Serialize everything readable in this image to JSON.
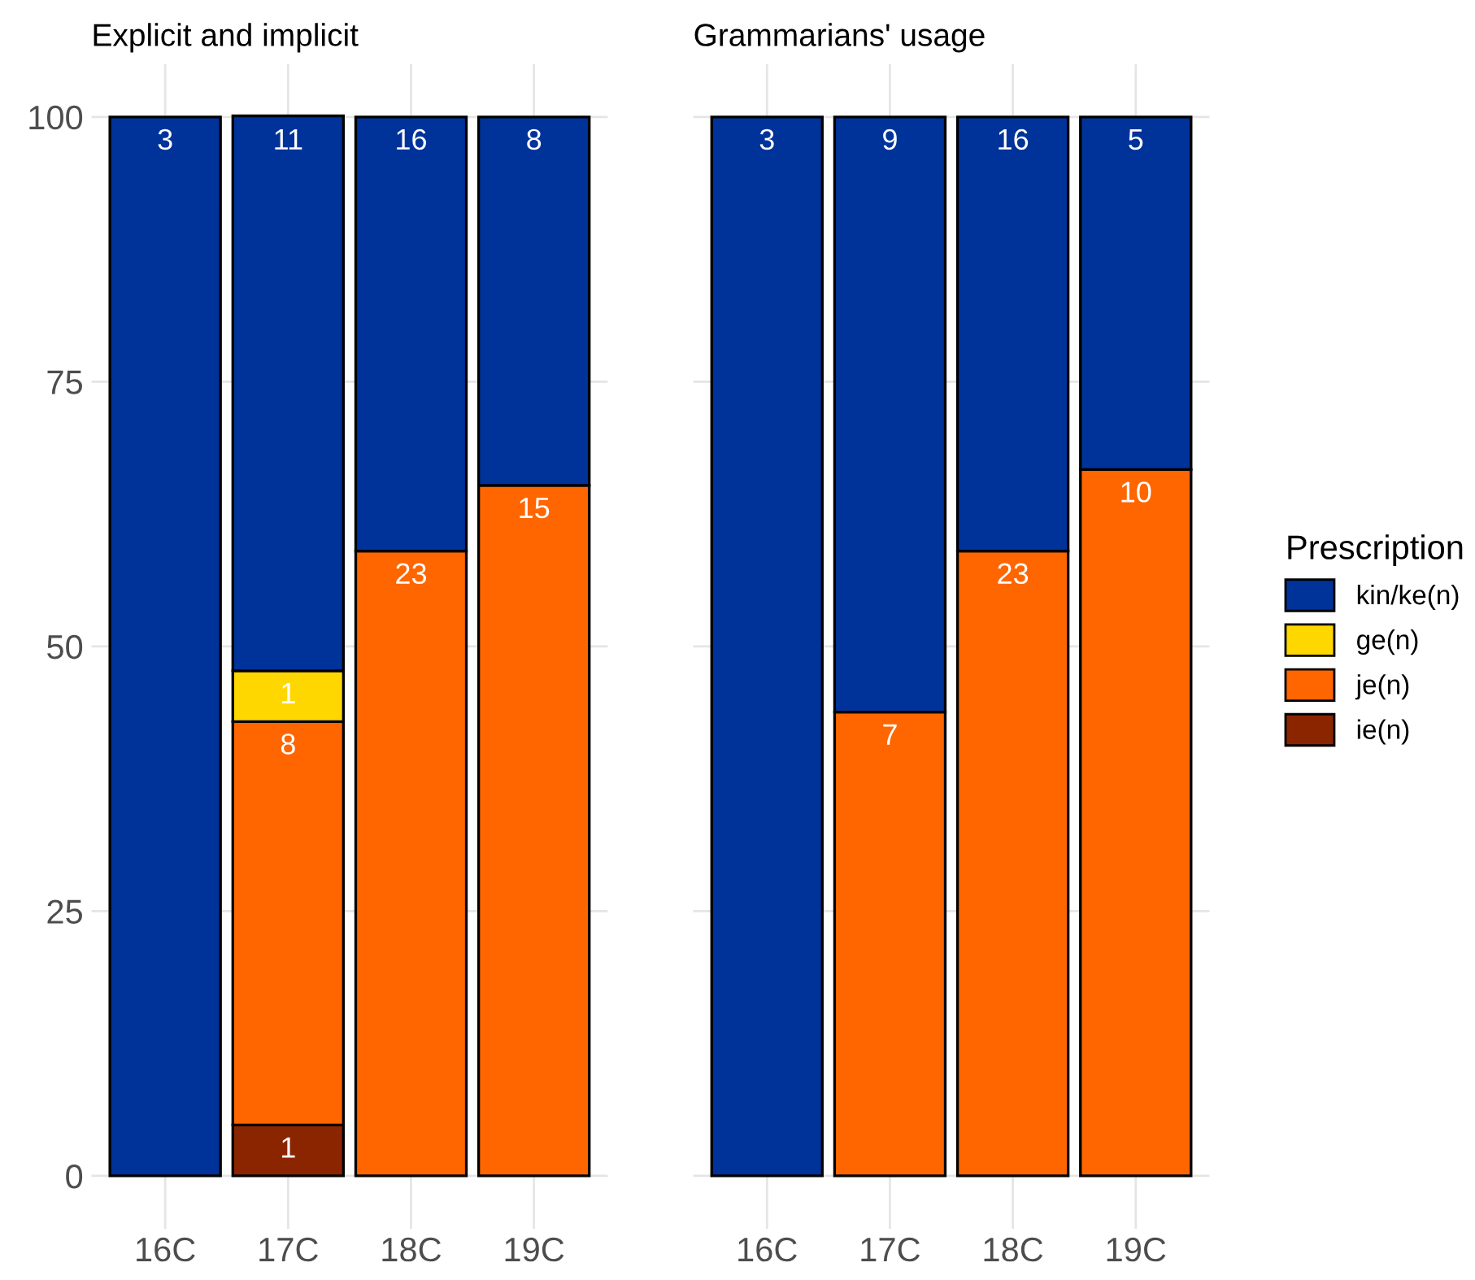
{
  "chart_data": [
    {
      "type": "bar",
      "stacked": true,
      "title": "Explicit and implicit",
      "categories": [
        "16C",
        "17C",
        "18C",
        "19C"
      ],
      "ylim": [
        -5,
        105
      ],
      "yticks": [
        0,
        25,
        50,
        75,
        100
      ],
      "grid": true,
      "legend": "right",
      "legend_title": "Prescription",
      "series": [
        {
          "name": "ie(n)",
          "color": "#8b2500",
          "values": [
            null,
            4.8,
            null,
            null
          ]
        },
        {
          "name": "je(n)",
          "color": "#ff6600",
          "values": [
            null,
            38.1,
            59.0,
            65.2
          ]
        },
        {
          "name": "ge(n)",
          "color": "#ffd700",
          "values": [
            null,
            4.8,
            null,
            null
          ]
        },
        {
          "name": "kin/ke(n)",
          "color": "#003399",
          "values": [
            100,
            52.4,
            41.0,
            34.8
          ]
        }
      ],
      "annotations": [
        {
          "text": "3",
          "x": "16C",
          "y": 100
        },
        {
          "text": "1",
          "x": "17C",
          "y": 4.8
        },
        {
          "text": "8",
          "x": "17C",
          "y": 42.9
        },
        {
          "text": "1",
          "x": "17C",
          "y": 47.7
        },
        {
          "text": "11",
          "x": "17C",
          "y": 100
        },
        {
          "text": "23",
          "x": "18C",
          "y": 59.0
        },
        {
          "text": "16",
          "x": "18C",
          "y": 100
        },
        {
          "text": "15",
          "x": "19C",
          "y": 65.2
        },
        {
          "text": "8",
          "x": "19C",
          "y": 100
        }
      ]
    },
    {
      "type": "bar",
      "stacked": true,
      "title": "Grammarians' usage",
      "categories": [
        "16C",
        "17C",
        "18C",
        "19C"
      ],
      "ylim": [
        -5,
        105
      ],
      "yticks": [
        0,
        25,
        50,
        75,
        100
      ],
      "tick_labels": "x",
      "grid": true,
      "series": [
        {
          "color": "#ff6600",
          "values": [
            null,
            43.8,
            59.0,
            66.7
          ]
        },
        {
          "color": "#003399",
          "values": [
            100,
            56.2,
            41.0,
            33.3
          ]
        }
      ],
      "annotations": [
        {
          "text": "3",
          "x": "16C",
          "y": 100
        },
        {
          "text": "7",
          "x": "17C",
          "y": 43.8
        },
        {
          "text": "9",
          "x": "17C",
          "y": 100
        },
        {
          "text": "23",
          "x": "18C",
          "y": 59.0
        },
        {
          "text": "16",
          "x": "18C",
          "y": 100
        },
        {
          "text": "10",
          "x": "19C",
          "y": 66.7
        },
        {
          "text": "5",
          "x": "19C",
          "y": 100
        }
      ]
    }
  ]
}
